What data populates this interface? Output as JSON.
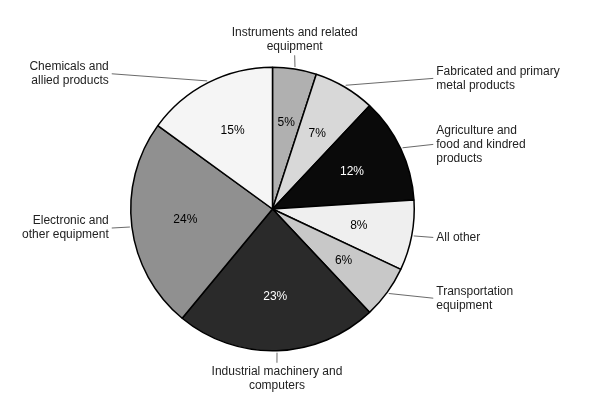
{
  "chart_data": {
    "type": "pie",
    "categories": [
      "Instruments and related\nequipment",
      "Fabricated and primary\nmetal products",
      "Agriculture and\nfood and kindred\nproducts",
      "All other",
      "Transportation\nequipment",
      "Industrial machinery and\ncomputers",
      "Electronic and\nother equipment",
      "Chemicals and\nallied products"
    ],
    "values": [
      5,
      7,
      12,
      8,
      6,
      23,
      24,
      15
    ],
    "value_labels": [
      "5%",
      "7%",
      "12%",
      "8%",
      "6%",
      "23%",
      "24%",
      "15%"
    ],
    "colors": [
      "#b0b0b0",
      "#d8d8d8",
      "#0a0a0a",
      "#efefef",
      "#c8c8c8",
      "#2a2a2a",
      "#909090",
      "#f5f5f5"
    ],
    "data_labels": true
  }
}
